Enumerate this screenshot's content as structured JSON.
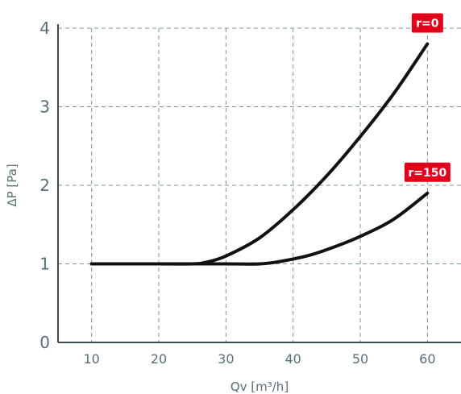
{
  "chart_data": {
    "type": "line",
    "xlabel": "Qv [m³/h]",
    "ylabel": "ΔP [Pa]",
    "xlim": [
      5,
      65
    ],
    "ylim": [
      0,
      4
    ],
    "xticks": [
      10,
      20,
      30,
      40,
      50,
      60
    ],
    "yticks": [
      0,
      1,
      2,
      3,
      4
    ],
    "grid": true,
    "colors": {
      "line": "#111111",
      "grid": "#7f9098",
      "axis": "#3f4c52",
      "text": "#5a6e78",
      "badge": "#e2001a"
    },
    "series": [
      {
        "name": "r=0",
        "x": [
          10,
          20,
          25,
          27,
          30,
          35,
          40,
          45,
          50,
          55,
          60
        ],
        "y": [
          1.0,
          1.0,
          1.0,
          1.02,
          1.1,
          1.33,
          1.69,
          2.12,
          2.62,
          3.17,
          3.8
        ]
      },
      {
        "name": "r=150",
        "x": [
          10,
          20,
          30,
          35,
          38,
          42,
          45,
          50,
          55,
          60
        ],
        "y": [
          1.0,
          1.0,
          1.0,
          1.0,
          1.03,
          1.1,
          1.18,
          1.35,
          1.57,
          1.9
        ]
      }
    ]
  }
}
